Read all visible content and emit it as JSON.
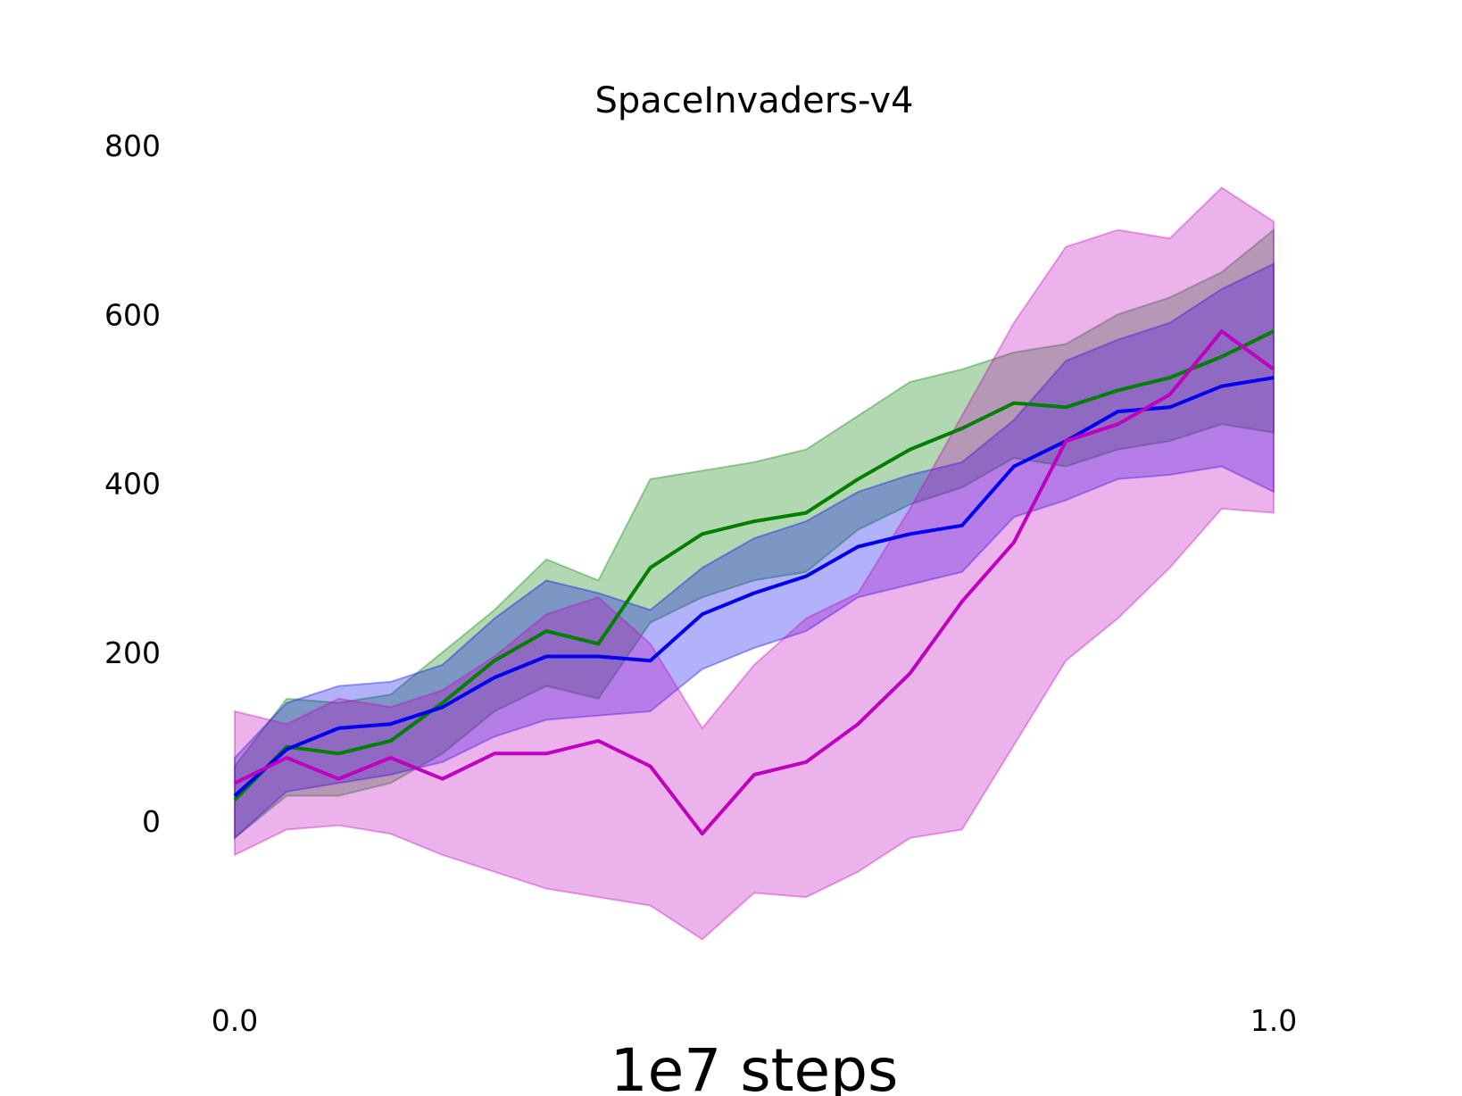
{
  "chart_data": {
    "type": "line",
    "title": "SpaceInvaders-v4",
    "xlabel": "1e7 steps",
    "ylabel": "",
    "xlim": [
      0.0,
      1.0
    ],
    "ylim": [
      -150,
      800
    ],
    "x_ticks": [
      "0.0",
      "1.0"
    ],
    "y_ticks": [
      "0",
      "200",
      "400",
      "600",
      "800"
    ],
    "grid": false,
    "legend": "none",
    "colors": {
      "green": "#007f00",
      "blue": "#0000ee",
      "magenta": "#bf00bf"
    },
    "x": [
      0.0,
      0.05,
      0.1,
      0.15,
      0.2,
      0.25,
      0.3,
      0.35,
      0.4,
      0.45,
      0.5,
      0.55,
      0.6,
      0.65,
      0.7,
      0.75,
      0.8,
      0.85,
      0.9,
      0.95,
      1.0
    ],
    "series": [
      {
        "color": "#007f00",
        "values": [
          25,
          88,
          80,
          95,
          140,
          190,
          225,
          210,
          300,
          340,
          355,
          365,
          405,
          440,
          465,
          495,
          490,
          510,
          525,
          550,
          580
        ],
        "lower": [
          -20,
          30,
          30,
          45,
          80,
          130,
          160,
          145,
          235,
          265,
          285,
          295,
          345,
          375,
          395,
          430,
          420,
          440,
          450,
          470,
          460
        ],
        "upper": [
          65,
          145,
          140,
          150,
          200,
          250,
          310,
          285,
          405,
          415,
          425,
          440,
          480,
          520,
          535,
          555,
          565,
          600,
          620,
          650,
          700
        ]
      },
      {
        "color": "#0000ee",
        "values": [
          30,
          85,
          110,
          115,
          135,
          170,
          195,
          195,
          190,
          245,
          270,
          290,
          325,
          340,
          350,
          420,
          450,
          485,
          490,
          515,
          525
        ],
        "lower": [
          -20,
          35,
          45,
          55,
          70,
          100,
          120,
          125,
          130,
          180,
          205,
          225,
          265,
          280,
          295,
          360,
          380,
          405,
          410,
          420,
          390
        ],
        "upper": [
          75,
          140,
          160,
          165,
          185,
          240,
          285,
          270,
          250,
          300,
          335,
          355,
          390,
          410,
          425,
          475,
          545,
          570,
          590,
          630,
          660
        ]
      },
      {
        "color": "#bf00bf",
        "values": [
          45,
          75,
          50,
          75,
          50,
          80,
          80,
          95,
          65,
          -15,
          55,
          70,
          115,
          175,
          260,
          330,
          450,
          470,
          505,
          580,
          535
        ],
        "lower": [
          -40,
          -10,
          -5,
          -15,
          -40,
          -60,
          -80,
          -90,
          -100,
          -140,
          -85,
          -90,
          -60,
          -20,
          -10,
          90,
          190,
          240,
          300,
          370,
          365
        ],
        "upper": [
          130,
          115,
          145,
          135,
          155,
          195,
          245,
          265,
          210,
          110,
          185,
          240,
          270,
          370,
          480,
          590,
          680,
          700,
          690,
          750,
          710
        ]
      }
    ]
  }
}
